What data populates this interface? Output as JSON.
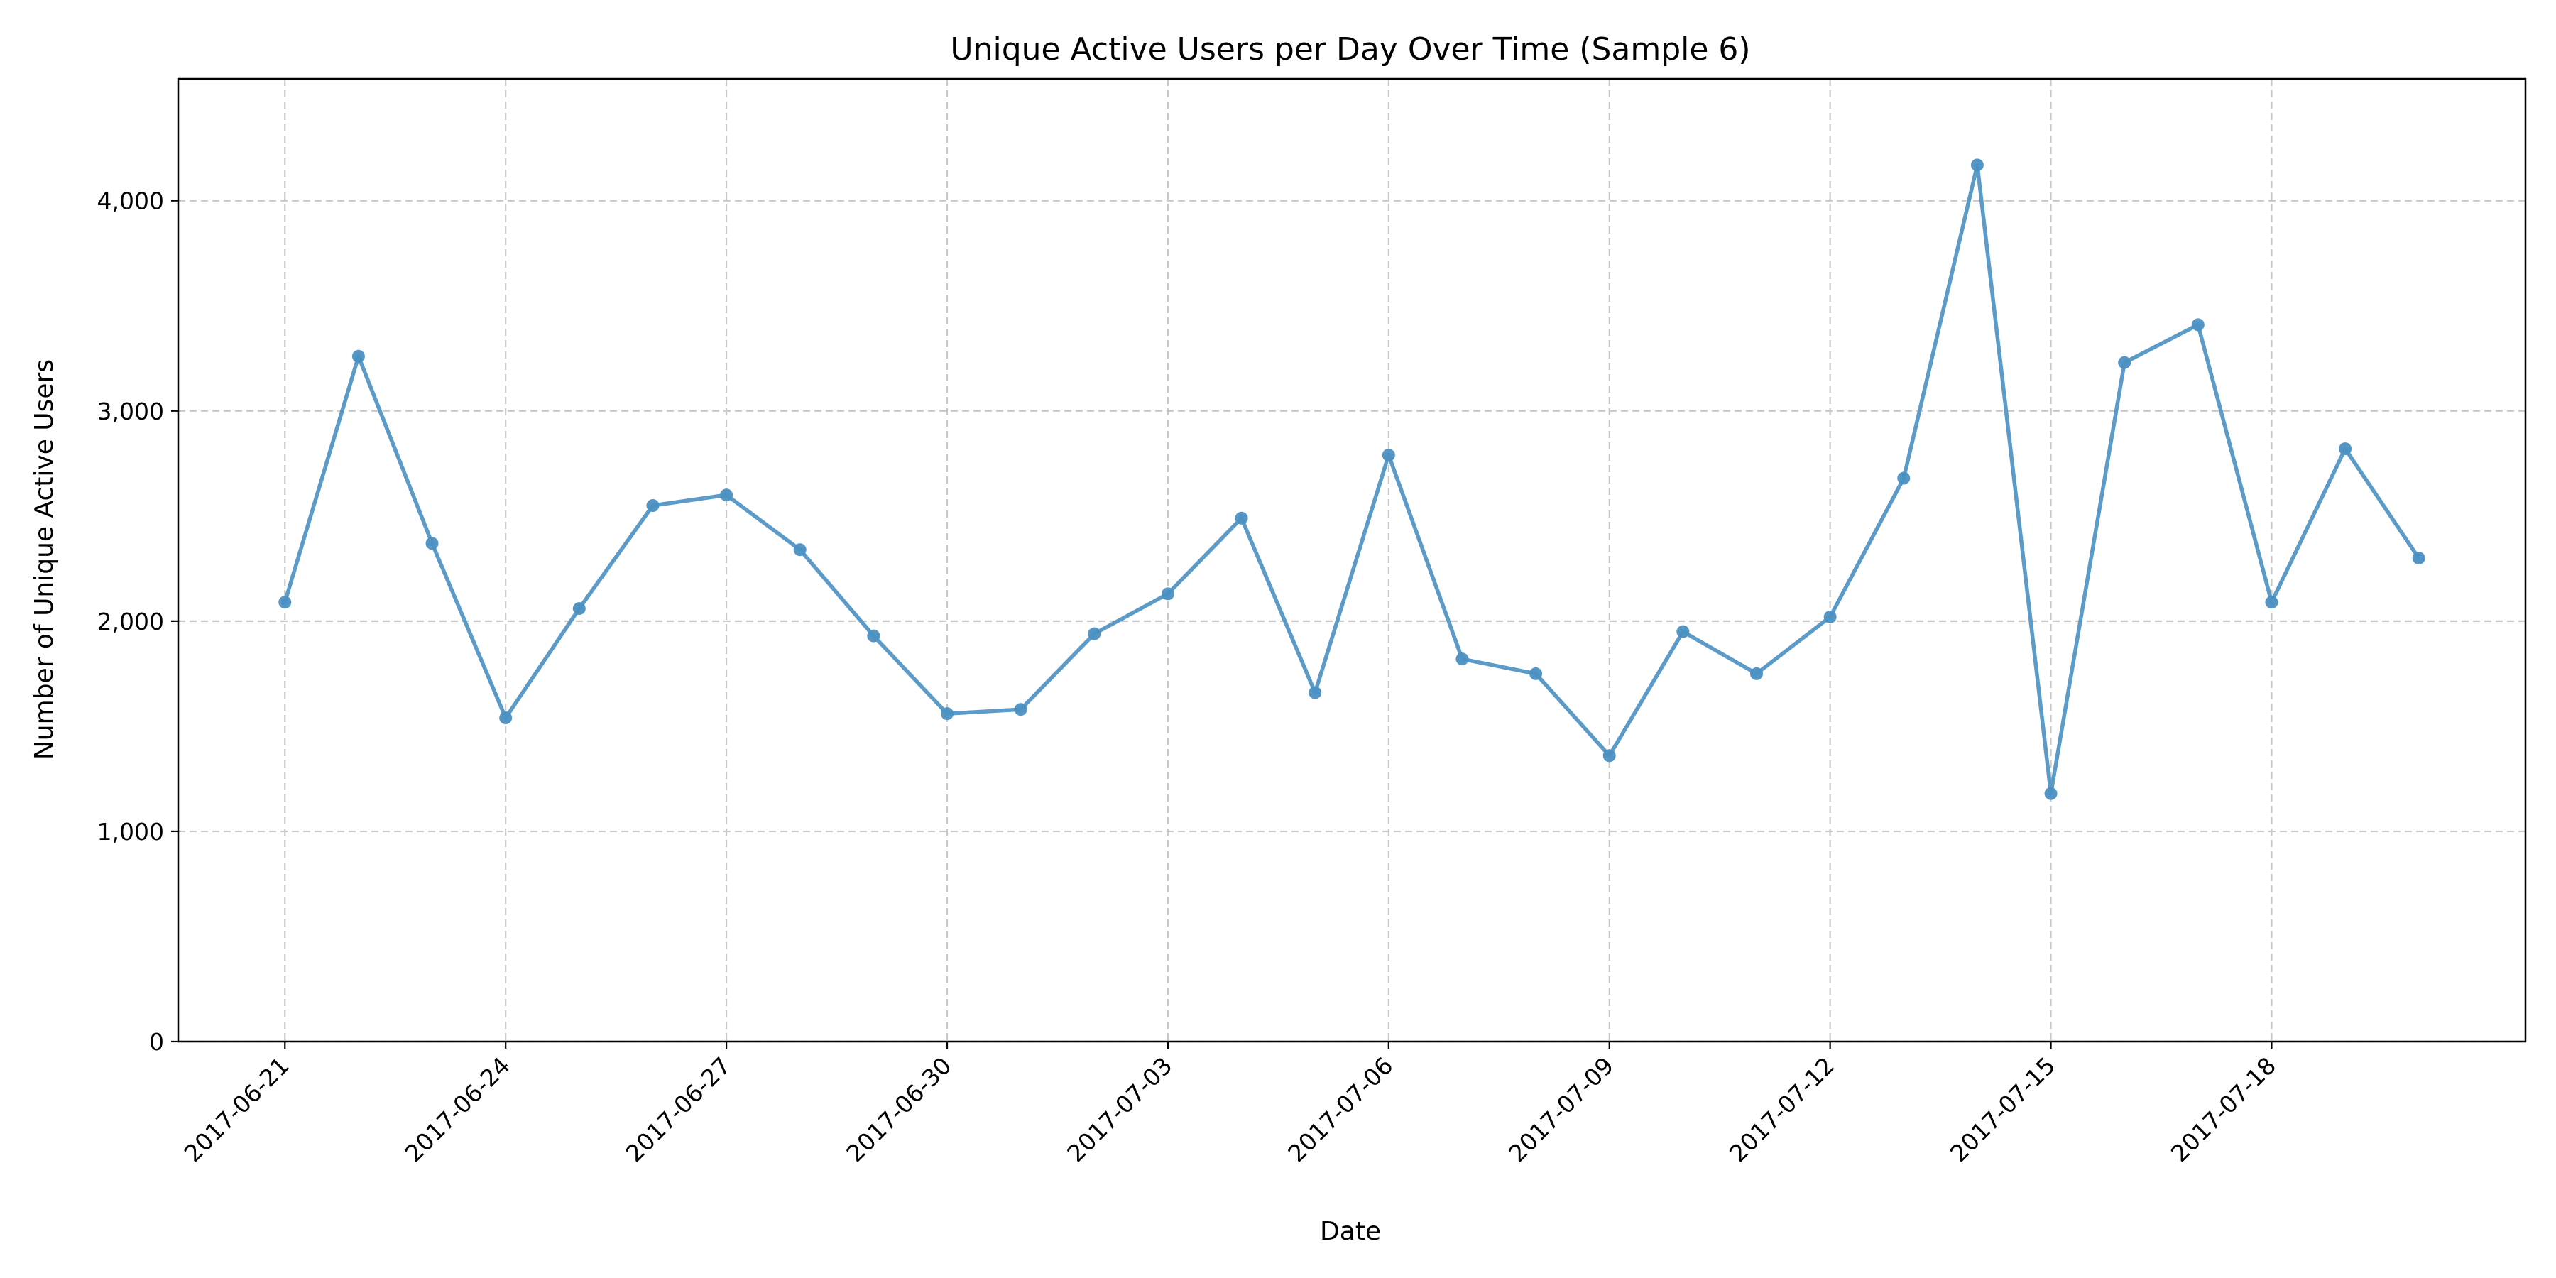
{
  "chart_data": {
    "type": "line",
    "title": "Unique Active Users per Day Over Time (Sample 6)",
    "xlabel": "Date",
    "ylabel": "Number of Unique Active Users",
    "x": [
      "2017-06-21",
      "2017-06-22",
      "2017-06-23",
      "2017-06-24",
      "2017-06-25",
      "2017-06-26",
      "2017-06-27",
      "2017-06-28",
      "2017-06-29",
      "2017-06-30",
      "2017-07-01",
      "2017-07-02",
      "2017-07-03",
      "2017-07-04",
      "2017-07-05",
      "2017-07-06",
      "2017-07-07",
      "2017-07-08",
      "2017-07-09",
      "2017-07-10",
      "2017-07-11",
      "2017-07-12",
      "2017-07-13",
      "2017-07-14",
      "2017-07-15",
      "2017-07-16",
      "2017-07-17",
      "2017-07-18",
      "2017-07-19",
      "2017-07-20"
    ],
    "series": [
      {
        "values": [
          2090,
          3260,
          2370,
          1540,
          2060,
          2550,
          2600,
          2340,
          1930,
          1560,
          1580,
          1940,
          2130,
          2490,
          1660,
          2790,
          1820,
          1750,
          1360,
          1950,
          1750,
          2020,
          2680,
          4170,
          1180,
          3230,
          3410,
          2090,
          2820,
          2300
        ]
      }
    ],
    "xticks": [
      "2017-06-21",
      "2017-06-24",
      "2017-06-27",
      "2017-06-30",
      "2017-07-03",
      "2017-07-06",
      "2017-07-09",
      "2017-07-12",
      "2017-07-15",
      "2017-07-18"
    ],
    "yticks": [
      0,
      1000,
      2000,
      3000,
      4000
    ],
    "ytick_labels": [
      "0",
      "1,000",
      "2,000",
      "3,000",
      "4,000"
    ],
    "xlim": [
      "2017-06-19.55",
      "2017-07-21.45"
    ],
    "ylim": [
      0,
      4580
    ],
    "grid": true,
    "legend": "none",
    "color": "#4a90c2"
  }
}
